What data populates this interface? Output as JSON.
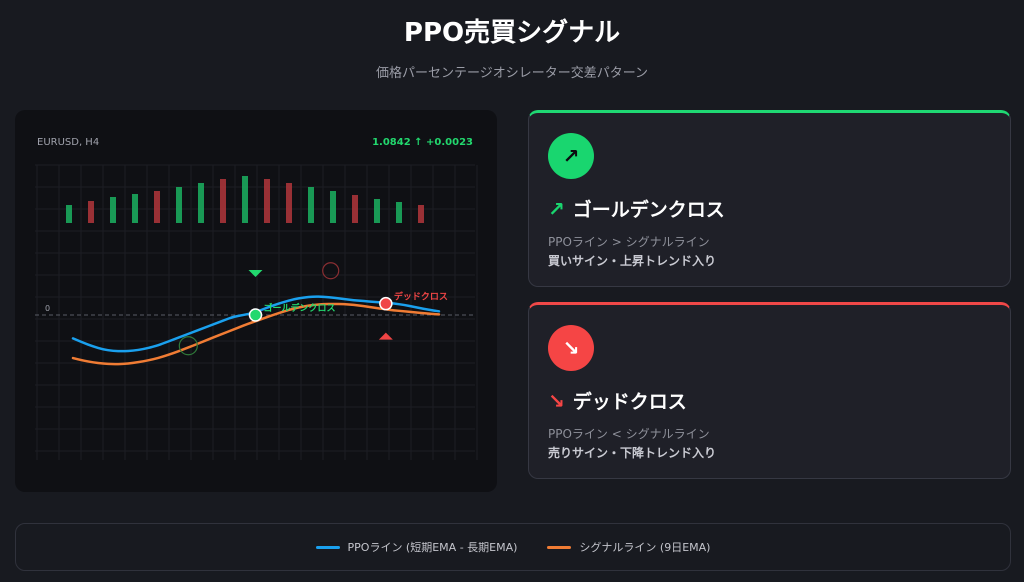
{
  "page": {
    "title": "PPO売買シグナル",
    "subtitle": "価格パーセンテージオシレーター交差パターン"
  },
  "chart_data": {
    "type": "line",
    "symbol_label": "EURUSD, H4",
    "price_label": "1.0842 ↑ +0.0023",
    "zero_label": "0",
    "colors": {
      "ppo": "#1aa0ee",
      "signal": "#f07c34",
      "up": "#1ba85c",
      "down": "#a83438",
      "golden": "#22d86e",
      "dead": "#f04545"
    },
    "histogram": [
      {
        "value": 18,
        "dir": "up"
      },
      {
        "value": 22,
        "dir": "down"
      },
      {
        "value": 26,
        "dir": "up"
      },
      {
        "value": 29,
        "dir": "up"
      },
      {
        "value": 32,
        "dir": "down"
      },
      {
        "value": 36,
        "dir": "up"
      },
      {
        "value": 40,
        "dir": "up"
      },
      {
        "value": 44,
        "dir": "down"
      },
      {
        "value": 47,
        "dir": "up"
      },
      {
        "value": 44,
        "dir": "down"
      },
      {
        "value": 40,
        "dir": "down"
      },
      {
        "value": 36,
        "dir": "up"
      },
      {
        "value": 32,
        "dir": "up"
      },
      {
        "value": 28,
        "dir": "down"
      },
      {
        "value": 24,
        "dir": "up"
      },
      {
        "value": 21,
        "dir": "up"
      },
      {
        "value": 18,
        "dir": "down"
      }
    ],
    "series": [
      {
        "key": "ppo",
        "name": "PPOライン (短期EMA - 長期EMA)",
        "x": [
          0,
          10,
          20,
          30,
          40,
          50,
          60,
          70,
          80,
          85,
          90,
          100,
          110,
          120,
          130,
          140,
          150,
          160,
          170,
          180,
          190,
          200,
          210,
          220,
          230,
          240,
          250,
          260,
          270,
          280,
          290,
          300,
          310,
          320,
          330,
          340,
          350,
          360,
          365
        ],
        "values": [
          -1.9,
          -2.25,
          -2.55,
          -2.8,
          -2.92,
          -2.95,
          -2.9,
          -2.78,
          -2.58,
          -2.45,
          -2.31,
          -2.0,
          -1.69,
          -1.38,
          -1.07,
          -0.76,
          -0.45,
          -0.14,
          0.0,
          0.17,
          0.48,
          0.79,
          1.05,
          1.28,
          1.42,
          1.5,
          1.48,
          1.4,
          1.3,
          1.2,
          1.13,
          1.07,
          1.01,
          0.94,
          0.82,
          0.66,
          0.5,
          0.36,
          0.3
        ],
        "color": "#1aa0ee"
      },
      {
        "key": "signal",
        "name": "シグナルライン (9日EMA)",
        "x": [
          0,
          10,
          20,
          30,
          40,
          50,
          60,
          70,
          80,
          90,
          100,
          110,
          120,
          130,
          140,
          150,
          160,
          170,
          180,
          190,
          200,
          210,
          220,
          230,
          240,
          250,
          260,
          270,
          280,
          290,
          300,
          310,
          320,
          330,
          340,
          350,
          360,
          365
        ],
        "values": [
          -3.5,
          -3.7,
          -3.85,
          -3.95,
          -4.0,
          -3.98,
          -3.9,
          -3.77,
          -3.6,
          -3.38,
          -3.1,
          -2.8,
          -2.48,
          -2.15,
          -1.82,
          -1.5,
          -1.18,
          -0.86,
          -0.56,
          -0.28,
          0.02,
          0.28,
          0.52,
          0.7,
          0.82,
          0.88,
          0.9,
          0.88,
          0.82,
          0.72,
          0.6,
          0.48,
          0.38,
          0.3,
          0.22,
          0.15,
          0.08,
          0.05
        ],
        "color": "#f07c34"
      }
    ],
    "events": [
      {
        "type": "golden",
        "label": "ゴールデンクロス",
        "x": 182,
        "y": 0.0
      },
      {
        "type": "dead",
        "label": "デッドクロス",
        "x": 312,
        "y": 0.92
      }
    ],
    "ylim": [
      -8,
      8
    ]
  },
  "cards": [
    {
      "type": "golden",
      "icon": "↗",
      "title": "ゴールデンクロス",
      "line1": "PPOライン > シグナルライン",
      "line2": "買いサイン・上昇トレンド入り"
    },
    {
      "type": "dead",
      "icon": "↘",
      "title": "デッドクロス",
      "line1": "PPOライン < シグナルライン",
      "line2": "売りサイン・下降トレンド入り"
    }
  ],
  "legend": [
    {
      "label": "PPOライン (短期EMA - 長期EMA)",
      "color": "#1aa0ee"
    },
    {
      "label": "シグナルライン (9日EMA)",
      "color": "#f07c34"
    }
  ]
}
